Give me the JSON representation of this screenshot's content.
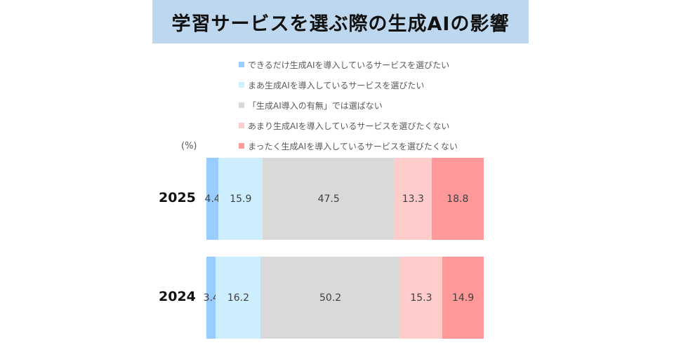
{
  "chart_data": {
    "type": "bar",
    "orientation": "horizontal-stacked-100",
    "title": "学習サービスを選ぶ際の生成AIの影響",
    "unit_label": "(%)",
    "categories": [
      "2025",
      "2024"
    ],
    "series": [
      {
        "name": "できるだけ生成AIを導入しているサービスを選びたい",
        "color": "#99ccff",
        "values": [
          4.4,
          3.4
        ]
      },
      {
        "name": "まあ生成AIを導入しているサービスを選びたい",
        "color": "#cceeff",
        "values": [
          15.9,
          16.2
        ]
      },
      {
        "name": "「生成AI導入の有無」では選ばない",
        "color": "#d9d9d9",
        "values": [
          47.5,
          50.2
        ]
      },
      {
        "name": "あまり生成AIを導入しているサービスを選びたくない",
        "color": "#ffcccc",
        "values": [
          13.3,
          15.3
        ]
      },
      {
        "name": "まったく生成AIを導入しているサービスを選びたくない",
        "color": "#ff9999",
        "values": [
          18.8,
          14.9
        ]
      }
    ],
    "xlim": [
      0,
      100
    ],
    "legend_position": "top",
    "grid": false
  }
}
